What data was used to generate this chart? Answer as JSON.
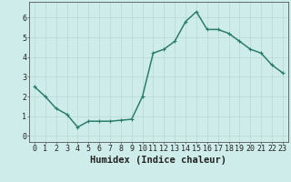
{
  "x": [
    0,
    1,
    2,
    3,
    4,
    5,
    6,
    7,
    8,
    9,
    10,
    11,
    12,
    13,
    14,
    15,
    16,
    17,
    18,
    19,
    20,
    21,
    22,
    23
  ],
  "y": [
    2.5,
    2.0,
    1.4,
    1.1,
    0.45,
    0.75,
    0.75,
    0.75,
    0.8,
    0.85,
    2.0,
    4.2,
    4.4,
    4.8,
    5.8,
    6.3,
    5.4,
    5.4,
    5.2,
    4.8,
    4.4,
    4.2,
    3.6,
    3.2
  ],
  "xlabel": "Humidex (Indice chaleur)",
  "xlim": [
    -0.5,
    23.5
  ],
  "ylim": [
    -0.3,
    6.8
  ],
  "yticks": [
    0,
    1,
    2,
    3,
    4,
    5,
    6
  ],
  "xticks": [
    0,
    1,
    2,
    3,
    4,
    5,
    6,
    7,
    8,
    9,
    10,
    11,
    12,
    13,
    14,
    15,
    16,
    17,
    18,
    19,
    20,
    21,
    22,
    23
  ],
  "line_color": "#2d7d6e",
  "bg_color": "#ceecea",
  "grid_color": "#b8d8d4",
  "axis_color": "#555555",
  "tick_label_color": "#222222",
  "xlabel_fontsize": 7.5,
  "tick_fontsize": 6.0,
  "line_width": 1.1,
  "marker_size": 2.5
}
